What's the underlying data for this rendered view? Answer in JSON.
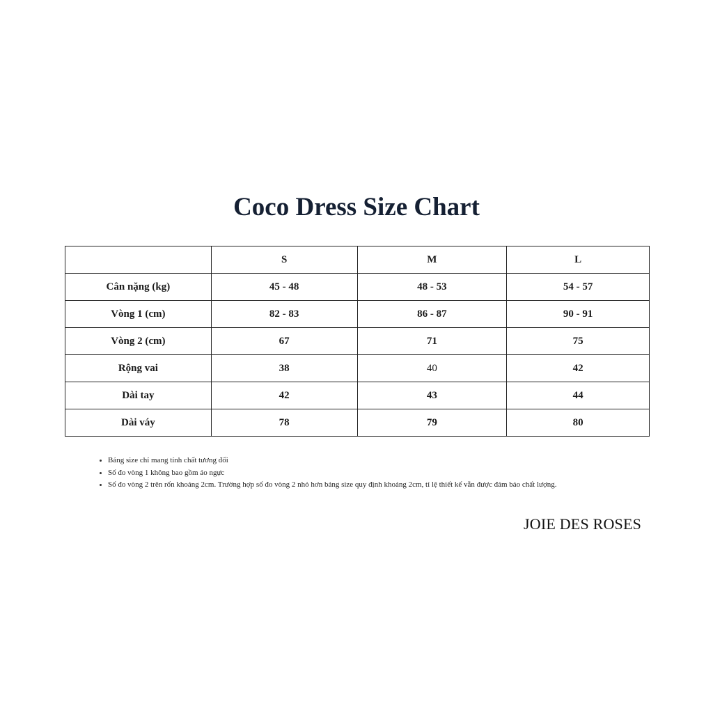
{
  "title": "Coco Dress Size Chart",
  "table": {
    "headers": [
      "",
      "S",
      "M",
      "L"
    ],
    "rows": [
      {
        "label": "Cân nặng (kg)",
        "values": [
          "45 - 48",
          "48 - 53",
          "54 - 57"
        ]
      },
      {
        "label": "Vòng 1 (cm)",
        "values": [
          "82 - 83",
          "86 - 87",
          "90 - 91"
        ]
      },
      {
        "label": "Vòng 2 (cm)",
        "values": [
          "67",
          "71",
          "75"
        ]
      },
      {
        "label": "Rộng vai",
        "values": [
          "38",
          "40",
          "42"
        ]
      },
      {
        "label": "Dài tay",
        "values": [
          "42",
          "43",
          "44"
        ]
      },
      {
        "label": "Dài váy",
        "values": [
          "78",
          "79",
          "80"
        ]
      }
    ]
  },
  "notes": [
    "Bảng size chỉ mang tính chất tương đối",
    "Số đo vòng 1 không bao gồm áo ngực",
    "Số đo vòng 2 trên rốn khoảng 2cm. Trường hợp số đo vòng 2 nhỏ hơn bảng size quy định khoảng 2cm, tỉ lệ thiết kế vẫn được đảm bảo chất lượng."
  ],
  "brand": "JOIE DES ROSES",
  "colors": {
    "title": "#152033",
    "border": "#222222"
  }
}
